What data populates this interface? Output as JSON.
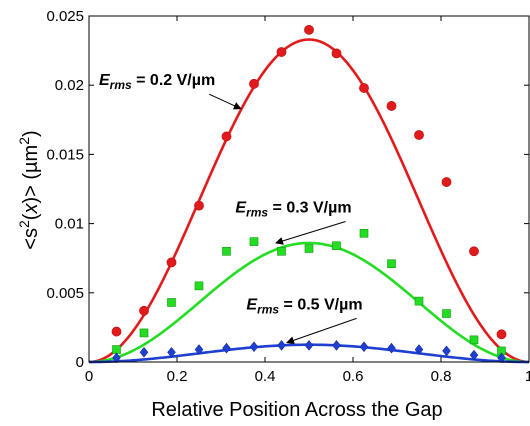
{
  "chart_data": {
    "type": "scatter",
    "xlabel": "Relative Position Across the Gap",
    "ylabel_parts": {
      "open": "<s",
      "sup": "2",
      "mid": "(",
      "var": "x",
      "close": ")> (µm",
      "unit_sup": "2",
      "end": ")"
    },
    "xlim": [
      0,
      1
    ],
    "ylim": [
      0,
      0.025
    ],
    "xticks": [
      "0",
      "0.2",
      "0.4",
      "0.6",
      "0.8",
      "1"
    ],
    "yticks": [
      "0",
      "0.005",
      "0.01",
      "0.015",
      "0.02",
      "0.025"
    ],
    "grid": false,
    "series": [
      {
        "name": "E_rms = 0.2 V/µm",
        "color": "#e31a1c",
        "marker": "circle",
        "fit_amplitude": 0.0233,
        "points": [
          {
            "x": 0.0625,
            "y": 0.0022
          },
          {
            "x": 0.125,
            "y": 0.0037
          },
          {
            "x": 0.1875,
            "y": 0.0072
          },
          {
            "x": 0.25,
            "y": 0.0113
          },
          {
            "x": 0.3125,
            "y": 0.0163
          },
          {
            "x": 0.375,
            "y": 0.0201
          },
          {
            "x": 0.4375,
            "y": 0.0224
          },
          {
            "x": 0.5,
            "y": 0.024
          },
          {
            "x": 0.5625,
            "y": 0.0223
          },
          {
            "x": 0.625,
            "y": 0.0198
          },
          {
            "x": 0.6875,
            "y": 0.0185
          },
          {
            "x": 0.75,
            "y": 0.0164
          },
          {
            "x": 0.8125,
            "y": 0.013
          },
          {
            "x": 0.875,
            "y": 0.008
          },
          {
            "x": 0.9375,
            "y": 0.002
          }
        ]
      },
      {
        "name": "E_rms = 0.3 V/µm",
        "color": "#22dd22",
        "marker": "square",
        "fit_amplitude": 0.0086,
        "points": [
          {
            "x": 0.0625,
            "y": 0.0009
          },
          {
            "x": 0.125,
            "y": 0.0021
          },
          {
            "x": 0.1875,
            "y": 0.0043
          },
          {
            "x": 0.25,
            "y": 0.0055
          },
          {
            "x": 0.3125,
            "y": 0.008
          },
          {
            "x": 0.375,
            "y": 0.0087
          },
          {
            "x": 0.4375,
            "y": 0.008
          },
          {
            "x": 0.5,
            "y": 0.0082
          },
          {
            "x": 0.5625,
            "y": 0.0084
          },
          {
            "x": 0.625,
            "y": 0.0093
          },
          {
            "x": 0.6875,
            "y": 0.0071
          },
          {
            "x": 0.75,
            "y": 0.0044
          },
          {
            "x": 0.8125,
            "y": 0.0035
          },
          {
            "x": 0.875,
            "y": 0.0016
          },
          {
            "x": 0.9375,
            "y": 0.0008
          }
        ]
      },
      {
        "name": "E_rms = 0.5 V/µm",
        "color": "#1f3fd0",
        "marker": "diamond",
        "fit_amplitude": 0.00125,
        "points": [
          {
            "x": 0.0625,
            "y": 0.0003
          },
          {
            "x": 0.125,
            "y": 0.0007
          },
          {
            "x": 0.1875,
            "y": 0.0007
          },
          {
            "x": 0.25,
            "y": 0.0009
          },
          {
            "x": 0.3125,
            "y": 0.001
          },
          {
            "x": 0.375,
            "y": 0.0011
          },
          {
            "x": 0.4375,
            "y": 0.0012
          },
          {
            "x": 0.5,
            "y": 0.0012
          },
          {
            "x": 0.5625,
            "y": 0.0012
          },
          {
            "x": 0.625,
            "y": 0.0011
          },
          {
            "x": 0.6875,
            "y": 0.001
          },
          {
            "x": 0.75,
            "y": 0.0009
          },
          {
            "x": 0.8125,
            "y": 0.0008
          },
          {
            "x": 0.875,
            "y": 0.0005
          },
          {
            "x": 0.9375,
            "y": 0.0003
          }
        ]
      }
    ],
    "annotations": [
      {
        "series": 0,
        "text_symbol": "E",
        "text_subscript": "rms",
        "text_value": " = 0.2 V/µm",
        "anchor_x": 0.0,
        "anchor_y": 0.02,
        "arrow_x": 0.345,
        "arrow_y": 0.0183
      },
      {
        "series": 1,
        "text_symbol": "E",
        "text_subscript": "rms",
        "text_value": " = 0.3 V/µm",
        "anchor_x": 0.31,
        "anchor_y": 0.0108,
        "arrow_x": 0.425,
        "arrow_y": 0.0086
      },
      {
        "series": 2,
        "text_symbol": "E",
        "text_subscript": "rms",
        "text_value": " = 0.5 V/µm",
        "anchor_x": 0.335,
        "anchor_y": 0.0038,
        "arrow_x": 0.45,
        "arrow_y": 0.0014
      }
    ]
  }
}
